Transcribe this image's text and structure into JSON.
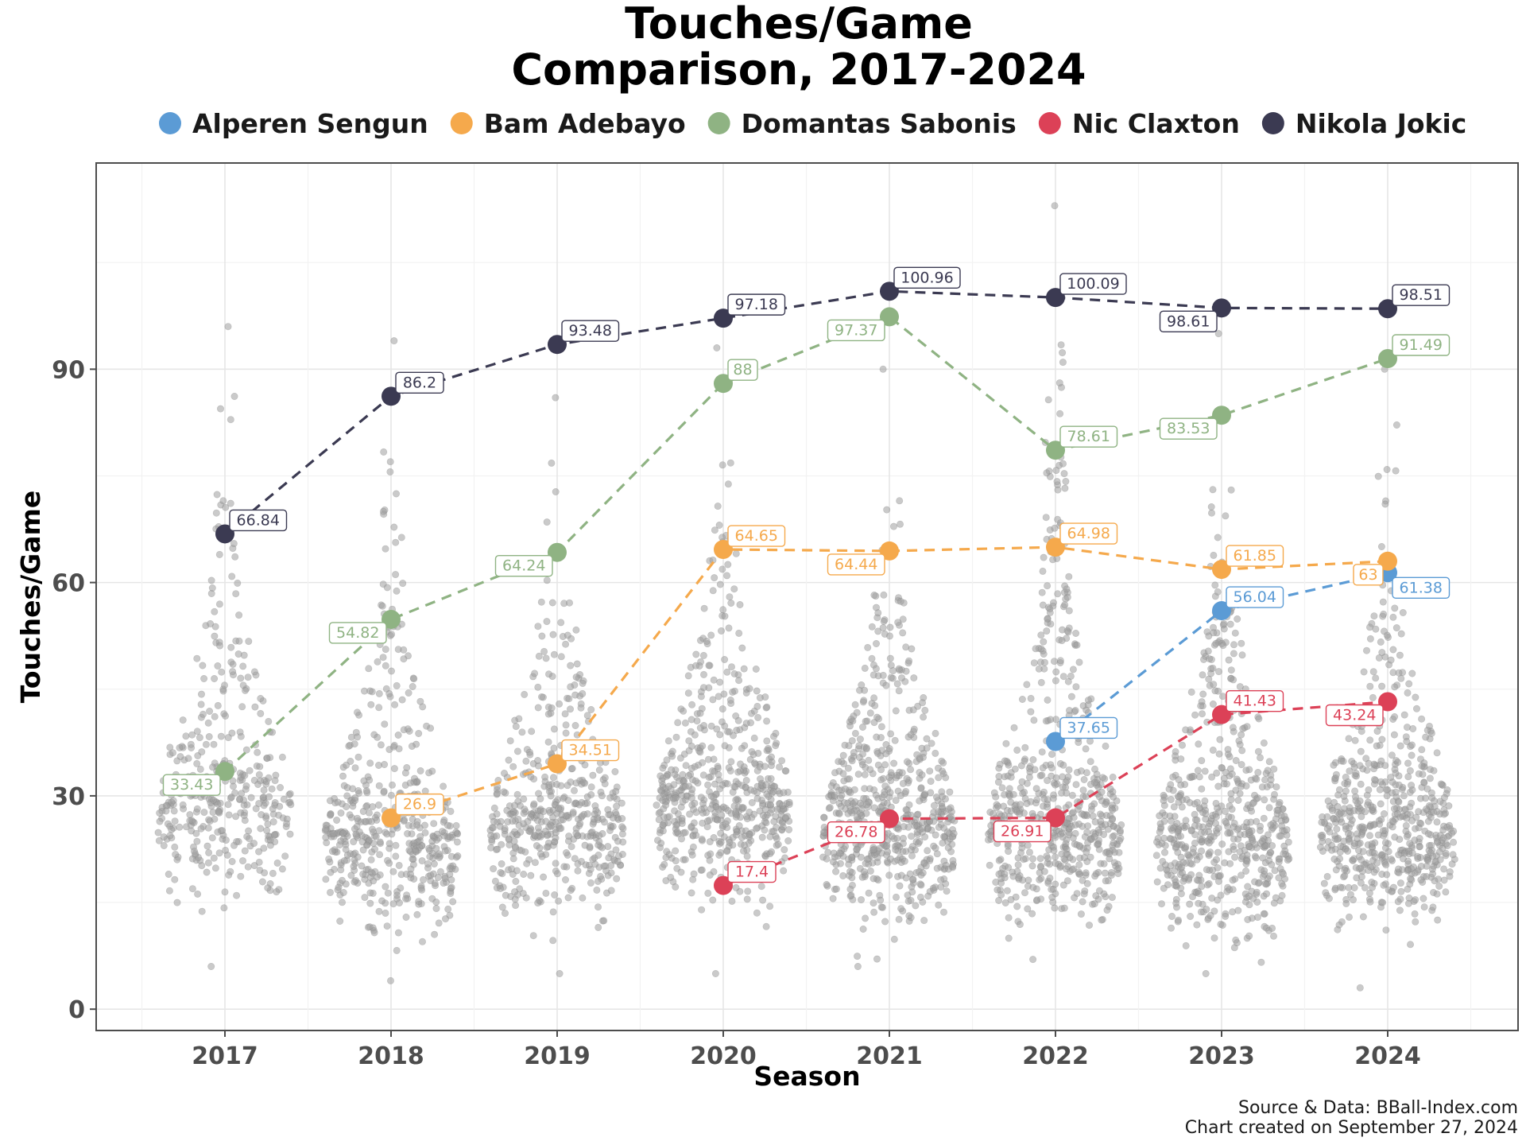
{
  "chart_data": {
    "type": "line",
    "title": "Touches/Game\nComparison, 2017-2024",
    "xlabel": "Season",
    "ylabel": "Touches/Game",
    "categories": [
      "2017",
      "2018",
      "2019",
      "2020",
      "2021",
      "2022",
      "2023",
      "2024"
    ],
    "ylim": [
      -3,
      119
    ],
    "yticks": [
      0,
      30,
      60,
      90
    ],
    "grid": true,
    "legend_position": "top",
    "caption": [
      "Source & Data: BBall-Index.com",
      "Chart created on September 27, 2024"
    ],
    "series": [
      {
        "name": "Alperen Sengun",
        "color": "#5b9bd5",
        "values": [
          null,
          null,
          null,
          null,
          null,
          37.65,
          56.04,
          61.38
        ],
        "label_offsets": [
          null,
          null,
          null,
          null,
          null,
          "above",
          "above",
          "below"
        ]
      },
      {
        "name": "Bam Adebayo",
        "color": "#f5a94c",
        "values": [
          null,
          26.9,
          34.51,
          64.65,
          64.44,
          64.98,
          61.85,
          63
        ],
        "label_offsets": [
          null,
          "above",
          "above",
          "above",
          "left",
          "above",
          "above",
          "left"
        ]
      },
      {
        "name": "Domantas Sabonis",
        "color": "#8fb383",
        "values": [
          33.43,
          54.82,
          64.24,
          88,
          97.37,
          78.61,
          83.53,
          91.49
        ],
        "label_offsets": [
          "left",
          "left",
          "left",
          "above",
          "left",
          "above",
          "left",
          "above"
        ]
      },
      {
        "name": "Nic Claxton",
        "color": "#dc4157",
        "values": [
          null,
          null,
          null,
          17.4,
          26.78,
          26.91,
          41.43,
          43.24
        ],
        "label_offsets": [
          null,
          null,
          null,
          "above",
          "left",
          "left",
          "above",
          "left"
        ]
      },
      {
        "name": "Nikola Jokic",
        "color": "#3b3a52",
        "values": [
          66.84,
          86.2,
          93.48,
          97.18,
          100.96,
          100.09,
          98.61,
          98.51
        ],
        "label_offsets": [
          "above",
          "above",
          "above",
          "above",
          "above",
          "above",
          "left",
          "above"
        ]
      }
    ],
    "background_distribution": {
      "description": "league-wide player touches per game by season",
      "color": "#9e9e9e",
      "ranges": [
        [
          6,
          96
        ],
        [
          4,
          94
        ],
        [
          5,
          86
        ],
        [
          5,
          93
        ],
        [
          6,
          90
        ],
        [
          7,
          113
        ],
        [
          5,
          95
        ],
        [
          3,
          90
        ]
      ],
      "modes": [
        26,
        22,
        24,
        27,
        24,
        24,
        22,
        23
      ],
      "counts": [
        380,
        470,
        470,
        560,
        620,
        610,
        590,
        580
      ]
    }
  }
}
